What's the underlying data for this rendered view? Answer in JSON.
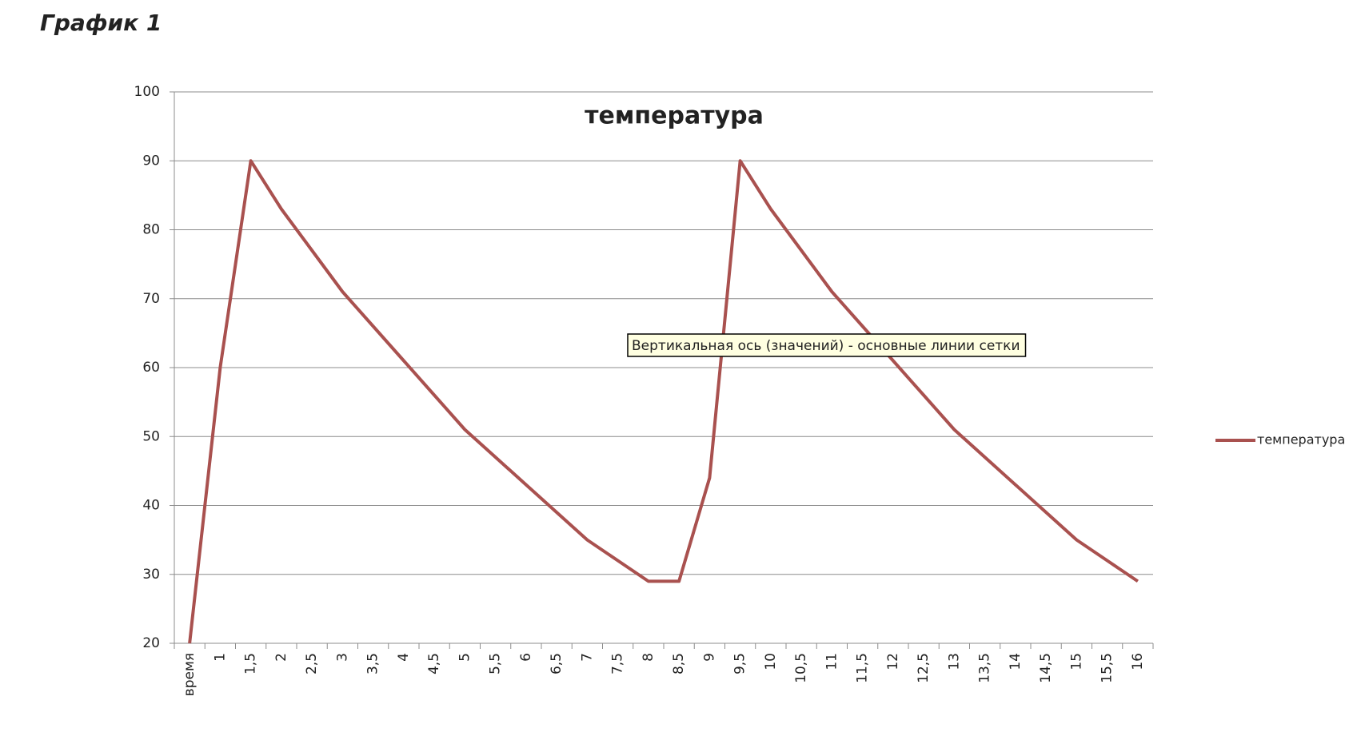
{
  "heading": "График 1",
  "chart_data": {
    "type": "line",
    "title": "температура",
    "tooltip": "Вертикальная ось (значений)  - основные линии сетки",
    "categories": [
      "время",
      "1",
      "1,5",
      "2",
      "2,5",
      "3",
      "3,5",
      "4",
      "4,5",
      "5",
      "5,5",
      "6",
      "6,5",
      "7",
      "7,5",
      "8",
      "8,5",
      "9",
      "9,5",
      "10",
      "10,5",
      "11",
      "11,5",
      "12",
      "12,5",
      "13",
      "13,5",
      "14",
      "14,5",
      "15",
      "15,5",
      "16"
    ],
    "series": [
      {
        "name": "температура",
        "color": "#a9514f",
        "values": [
          20,
          60,
          90,
          83,
          77,
          71,
          66,
          61,
          56,
          51,
          47,
          43,
          39,
          35,
          32,
          29,
          29,
          44,
          90,
          83,
          77,
          71,
          66,
          61,
          56,
          51,
          47,
          43,
          39,
          35,
          32,
          29
        ]
      }
    ],
    "ylim": [
      20,
      100
    ],
    "yticks": [
      20,
      30,
      40,
      50,
      60,
      70,
      80,
      90,
      100
    ],
    "grid": true,
    "legend": "right"
  }
}
